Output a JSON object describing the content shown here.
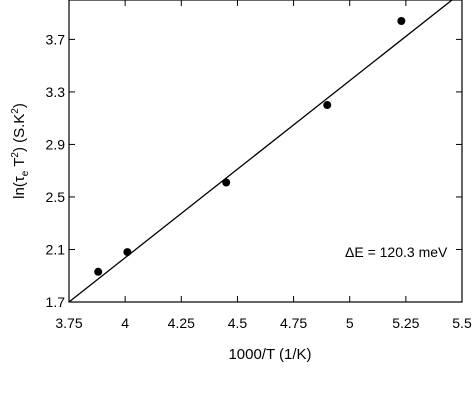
{
  "chart_data": {
    "type": "scatter",
    "xlabel": "1000/T (1/K)",
    "ylabel_parts": {
      "base": "ln(τ",
      "sub": "e",
      "mid": " T",
      "sup1": "2",
      "unit": ") (S.K",
      "sup2": "2",
      "end": ")"
    },
    "xlim": [
      3.75,
      5.5
    ],
    "ylim": [
      1.7,
      4.0
    ],
    "xticks": [
      3.75,
      4.0,
      4.25,
      4.5,
      4.75,
      5.0,
      5.25,
      5.5
    ],
    "xtick_labels": [
      "3.75",
      "4",
      "4.25",
      "4.5",
      "4.75",
      "5",
      "5.25",
      "5.5"
    ],
    "yticks": [
      1.7,
      2.1,
      2.5,
      2.9,
      3.3,
      3.7
    ],
    "ytick_labels": [
      "1.7",
      "2.1",
      "2.5",
      "2.9",
      "3.3",
      "3.7"
    ],
    "points": [
      {
        "x": 3.88,
        "y": 1.93
      },
      {
        "x": 4.01,
        "y": 2.08
      },
      {
        "x": 4.45,
        "y": 2.61
      },
      {
        "x": 4.9,
        "y": 3.2
      },
      {
        "x": 5.23,
        "y": 3.84
      }
    ],
    "fit_line": {
      "x": [
        3.75,
        5.5
      ],
      "y": [
        1.7,
        4.06
      ]
    },
    "annotation": "ΔE = 120.3 meV",
    "grid": false,
    "legend": "none"
  }
}
